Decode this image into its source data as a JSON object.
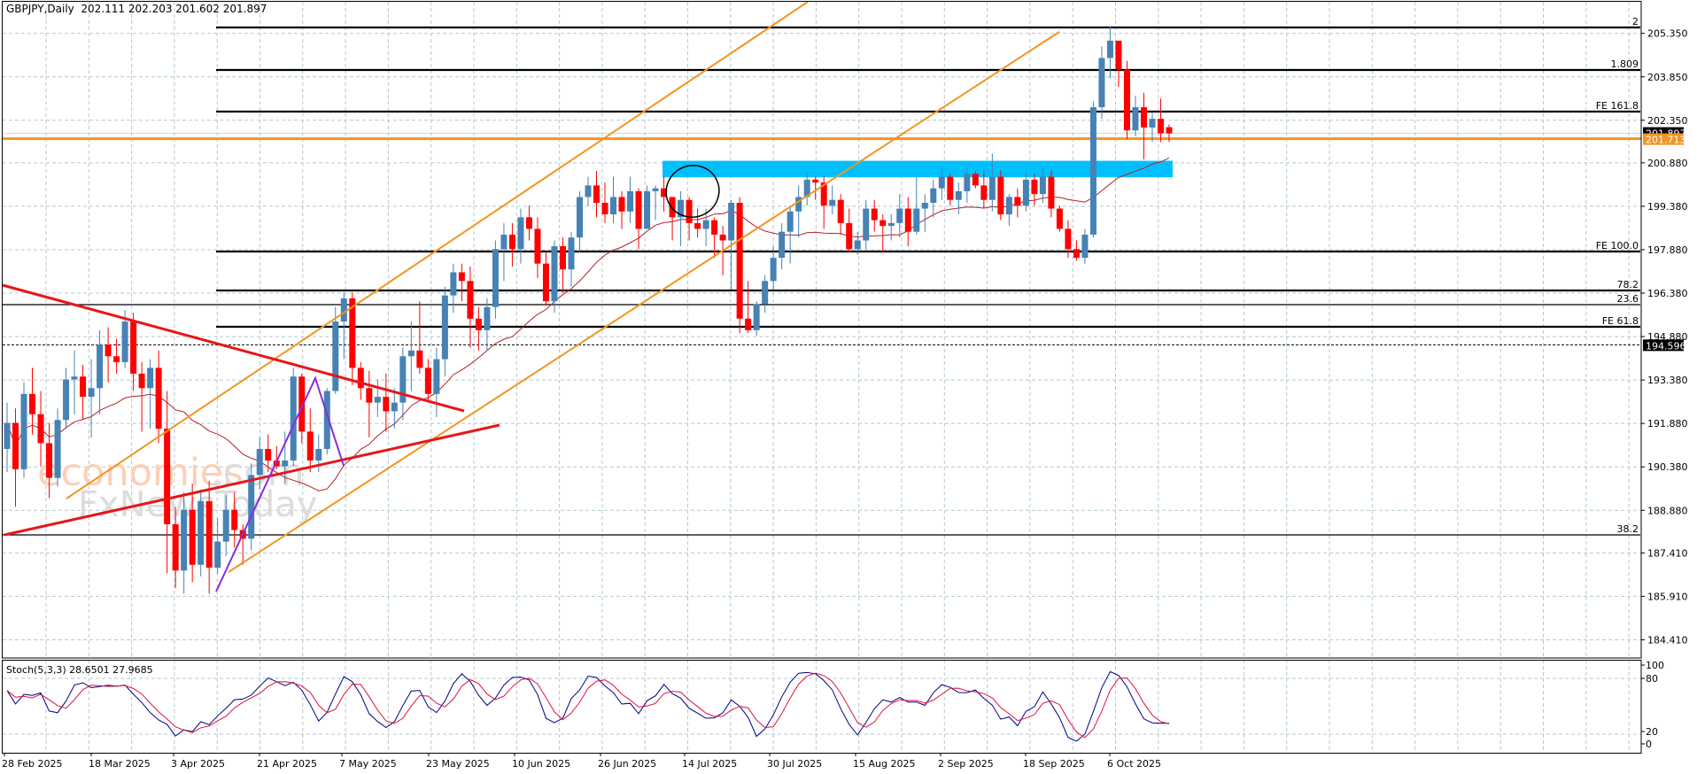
{
  "header": {
    "symbol": "GBPJPY",
    "timeframe": "Daily",
    "open": "202.111",
    "high": "202.203",
    "low": "201.602",
    "close": "201.897",
    "text": "GBPJPY,Daily  202.111 202.203 201.602 201.897"
  },
  "stoch_header": {
    "name": "Stoch(5,3,3)",
    "main": "28.6501",
    "signal": "27.9685",
    "text": "Stoch(5,3,3) 28.6501 27.9685"
  },
  "colors": {
    "bull": "#4682b4",
    "bear": "#ff0000",
    "grid": "#b4c8d2",
    "orange_line": "#f39423",
    "channel": "#f39423",
    "trend_red": "#e8161a",
    "ma": "#b22222",
    "zone": "#00bfff",
    "pattern": "#8a2be2",
    "stoch_main": "#000080",
    "stoch_signal": "#dc143c"
  },
  "price_axis": {
    "ticks": [
      "205.350",
      "203.850",
      "202.350",
      "200.880",
      "199.380",
      "197.880",
      "196.380",
      "194.880",
      "193.380",
      "191.880",
      "190.380",
      "188.880",
      "187.410",
      "185.910",
      "184.410"
    ],
    "current_label": "201.897",
    "orange_label": "201.713",
    "dotted_label": "194.596"
  },
  "fib_levels": [
    {
      "label": "2",
      "price": 205.55
    },
    {
      "label": "1.809",
      "price": 204.08
    },
    {
      "label": "FE 161.8",
      "price": 202.66
    },
    {
      "label": "FE 100.0",
      "price": 197.82
    },
    {
      "label": "78.2",
      "price": 196.47
    },
    {
      "label": "23.6",
      "price": 195.98
    },
    {
      "label": "FE 61.8",
      "price": 195.23
    },
    {
      "label": "38.2",
      "price": 188.02
    }
  ],
  "stoch_axis": {
    "ticks": [
      "100",
      "80",
      "20",
      "0"
    ]
  },
  "date_axis": {
    "labels": [
      "28 Feb 2025",
      "18 Mar 2025",
      "3 Apr 2025",
      "21 Apr 2025",
      "7 May 2025",
      "23 May 2025",
      "10 Jun 2025",
      "26 Jun 2025",
      "14 Jul 2025",
      "30 Jul 2025",
      "15 Aug 2025",
      "2 Sep 2025",
      "18 Sep 2025",
      "6 Oct 2025"
    ]
  },
  "watermark": {
    "line1a": "economies",
    "line1b": ".com",
    "line2": "FxNewsToday"
  },
  "chart_data": {
    "type": "candlestick",
    "title": "GBPJPY,Daily",
    "symbol": "GBPJPY",
    "timeframe": "Daily",
    "ohlc_last": {
      "open": 202.111,
      "high": 202.203,
      "low": 201.602,
      "close": 201.897
    },
    "ylim": [
      184.0,
      206.2
    ],
    "y_ticks": [
      205.35,
      203.85,
      202.35,
      200.88,
      199.38,
      197.88,
      196.38,
      194.88,
      193.38,
      191.88,
      190.38,
      188.88,
      187.41,
      185.91,
      184.41
    ],
    "x_tick_labels": [
      "28 Feb 2025",
      "18 Mar 2025",
      "3 Apr 2025",
      "21 Apr 2025",
      "7 May 2025",
      "23 May 2025",
      "10 Jun 2025",
      "26 Jun 2025",
      "14 Jul 2025",
      "30 Jul 2025",
      "15 Aug 2025",
      "2 Sep 2025",
      "18 Sep 2025",
      "6 Oct 2025"
    ],
    "horizontal_levels": [
      {
        "name": "orange support",
        "value": 201.713
      },
      {
        "name": "dotted level",
        "value": 194.596
      },
      {
        "name": "Fib 2",
        "value": 205.55
      },
      {
        "name": "Fib 1.809",
        "value": 204.08
      },
      {
        "name": "FE 161.8",
        "value": 202.66
      },
      {
        "name": "FE 100.0",
        "value": 197.82
      },
      {
        "name": "Fib 78.2",
        "value": 196.47
      },
      {
        "name": "Fib 23.6",
        "value": 195.98
      },
      {
        "name": "FE 61.8",
        "value": 195.23
      },
      {
        "name": "Fib 38.2",
        "value": 188.02
      }
    ],
    "resistance_zone": {
      "from": 200.38,
      "to": 200.95
    },
    "candles": [
      [
        191.0,
        192.6,
        190.2,
        191.9
      ],
      [
        191.9,
        192.4,
        189.0,
        190.3
      ],
      [
        190.3,
        193.3,
        190.0,
        192.9
      ],
      [
        192.9,
        193.8,
        191.5,
        192.2
      ],
      [
        192.2,
        193.0,
        190.4,
        191.2
      ],
      [
        191.2,
        191.9,
        189.3,
        190.0
      ],
      [
        190.0,
        192.4,
        189.7,
        192.0
      ],
      [
        192.0,
        193.8,
        191.7,
        193.4
      ],
      [
        193.4,
        194.4,
        192.2,
        193.5
      ],
      [
        193.5,
        193.9,
        192.0,
        192.8
      ],
      [
        192.8,
        194.1,
        191.4,
        193.1
      ],
      [
        193.1,
        195.1,
        192.2,
        194.6
      ],
      [
        194.6,
        195.2,
        193.3,
        194.2
      ],
      [
        194.2,
        194.8,
        193.6,
        194.0
      ],
      [
        194.0,
        195.8,
        193.8,
        195.4
      ],
      [
        195.4,
        195.7,
        193.0,
        193.6
      ],
      [
        193.6,
        194.0,
        191.6,
        193.1
      ],
      [
        193.1,
        194.1,
        191.7,
        193.8
      ],
      [
        193.8,
        194.4,
        191.2,
        191.7
      ],
      [
        191.7,
        193.0,
        186.7,
        188.4
      ],
      [
        188.4,
        189.0,
        186.2,
        186.8
      ],
      [
        186.8,
        189.5,
        186.0,
        188.9
      ],
      [
        188.9,
        189.8,
        186.4,
        187.0
      ],
      [
        187.0,
        189.6,
        186.6,
        189.2
      ],
      [
        189.2,
        189.9,
        186.0,
        186.9
      ],
      [
        186.9,
        188.6,
        186.7,
        187.8
      ],
      [
        187.8,
        189.4,
        187.3,
        188.9
      ],
      [
        188.9,
        189.5,
        187.6,
        188.2
      ],
      [
        188.2,
        188.4,
        187.0,
        187.9
      ],
      [
        187.9,
        190.5,
        187.5,
        190.1
      ],
      [
        190.1,
        191.4,
        189.6,
        191.0
      ],
      [
        191.0,
        191.5,
        190.2,
        190.6
      ],
      [
        190.6,
        191.1,
        190.3,
        190.4
      ],
      [
        190.4,
        191.6,
        189.8,
        190.6
      ],
      [
        190.6,
        193.8,
        190.4,
        193.5
      ],
      [
        193.5,
        193.6,
        191.2,
        191.6
      ],
      [
        191.6,
        192.4,
        190.2,
        190.6
      ],
      [
        190.6,
        191.5,
        190.2,
        191.0
      ],
      [
        191.0,
        193.1,
        190.8,
        193.0
      ],
      [
        193.0,
        195.9,
        192.9,
        195.4
      ],
      [
        195.4,
        196.4,
        194.1,
        196.2
      ],
      [
        196.2,
        196.4,
        193.2,
        193.8
      ],
      [
        193.8,
        194.0,
        192.7,
        193.1
      ],
      [
        193.1,
        193.7,
        191.4,
        192.6
      ],
      [
        192.6,
        193.4,
        192.1,
        192.8
      ],
      [
        192.8,
        193.6,
        191.6,
        192.3
      ],
      [
        192.3,
        193.1,
        191.7,
        192.6
      ],
      [
        192.6,
        194.5,
        192.0,
        194.2
      ],
      [
        194.2,
        195.4,
        193.0,
        194.4
      ],
      [
        194.4,
        196.1,
        193.6,
        193.8
      ],
      [
        193.8,
        194.1,
        192.6,
        192.9
      ],
      [
        192.9,
        194.5,
        192.1,
        194.1
      ],
      [
        194.1,
        196.6,
        193.5,
        196.3
      ],
      [
        196.3,
        197.4,
        195.7,
        197.1
      ],
      [
        197.1,
        197.4,
        196.1,
        196.8
      ],
      [
        196.8,
        197.3,
        194.5,
        195.5
      ],
      [
        195.5,
        195.9,
        194.4,
        195.1
      ],
      [
        195.1,
        196.2,
        194.4,
        195.9
      ],
      [
        195.9,
        198.2,
        195.5,
        197.9
      ],
      [
        197.9,
        198.8,
        196.8,
        198.4
      ],
      [
        198.4,
        198.8,
        197.3,
        197.9
      ],
      [
        197.9,
        199.3,
        197.4,
        199.0
      ],
      [
        199.0,
        199.4,
        198.2,
        198.6
      ],
      [
        198.6,
        199.0,
        196.9,
        197.4
      ],
      [
        197.4,
        197.8,
        196.0,
        196.1
      ],
      [
        196.1,
        198.2,
        195.7,
        198.0
      ],
      [
        198.0,
        198.3,
        196.4,
        197.2
      ],
      [
        197.2,
        198.5,
        196.6,
        198.3
      ],
      [
        198.3,
        199.9,
        197.8,
        199.7
      ],
      [
        199.7,
        200.4,
        199.4,
        200.1
      ],
      [
        200.1,
        200.6,
        199.0,
        199.5
      ],
      [
        199.5,
        200.2,
        198.8,
        199.1
      ],
      [
        199.1,
        200.4,
        198.8,
        199.7
      ],
      [
        199.7,
        199.9,
        198.6,
        199.2
      ],
      [
        199.2,
        200.4,
        198.8,
        199.9
      ],
      [
        199.9,
        200.0,
        197.9,
        198.6
      ],
      [
        198.6,
        200.1,
        198.7,
        199.9
      ],
      [
        199.9,
        200.1,
        198.9,
        200.0
      ],
      [
        200.0,
        200.4,
        199.2,
        199.7
      ],
      [
        199.7,
        199.7,
        198.2,
        199.0
      ],
      [
        199.0,
        199.9,
        198.0,
        199.6
      ],
      [
        199.6,
        199.7,
        198.2,
        198.8
      ],
      [
        198.8,
        199.3,
        198.3,
        198.6
      ],
      [
        198.6,
        199.3,
        198.0,
        198.9
      ],
      [
        198.9,
        199.0,
        197.6,
        198.4
      ],
      [
        198.4,
        198.7,
        197.0,
        198.2
      ],
      [
        198.2,
        199.6,
        196.5,
        199.5
      ],
      [
        199.5,
        199.7,
        195.0,
        195.5
      ],
      [
        195.5,
        196.8,
        195.0,
        195.1
      ],
      [
        195.1,
        196.1,
        194.9,
        196.0
      ],
      [
        196.0,
        197.0,
        195.7,
        196.8
      ],
      [
        196.8,
        198.0,
        196.5,
        197.6
      ],
      [
        197.6,
        198.8,
        197.2,
        198.5
      ],
      [
        198.5,
        199.4,
        197.4,
        199.2
      ],
      [
        199.2,
        200.1,
        198.3,
        199.7
      ],
      [
        199.7,
        200.5,
        199.4,
        200.3
      ],
      [
        200.3,
        200.4,
        199.6,
        200.2
      ],
      [
        200.2,
        200.4,
        198.6,
        199.4
      ],
      [
        199.4,
        200.1,
        199.1,
        199.6
      ],
      [
        199.6,
        199.8,
        198.4,
        198.8
      ],
      [
        198.8,
        199.3,
        197.8,
        197.9
      ],
      [
        197.9,
        198.5,
        197.7,
        198.2
      ],
      [
        198.2,
        199.6,
        197.9,
        199.3
      ],
      [
        199.3,
        199.6,
        198.5,
        198.9
      ],
      [
        198.9,
        199.1,
        197.8,
        198.7
      ],
      [
        198.7,
        199.1,
        198.2,
        198.8
      ],
      [
        198.8,
        199.8,
        198.3,
        199.3
      ],
      [
        199.3,
        199.7,
        198.0,
        198.5
      ],
      [
        198.5,
        200.4,
        198.4,
        199.3
      ],
      [
        199.3,
        199.8,
        198.5,
        199.5
      ],
      [
        199.5,
        200.3,
        199.0,
        200.0
      ],
      [
        200.0,
        200.7,
        199.6,
        200.4
      ],
      [
        200.4,
        200.5,
        199.4,
        199.6
      ],
      [
        199.6,
        200.2,
        199.1,
        199.9
      ],
      [
        199.9,
        200.7,
        199.5,
        200.5
      ],
      [
        200.5,
        200.6,
        200.0,
        200.1
      ],
      [
        200.1,
        200.6,
        199.3,
        199.6
      ],
      [
        199.6,
        201.2,
        199.2,
        200.4
      ],
      [
        200.4,
        200.6,
        198.9,
        199.1
      ],
      [
        199.1,
        199.8,
        198.7,
        199.7
      ],
      [
        199.7,
        200.0,
        199.0,
        199.4
      ],
      [
        199.4,
        200.6,
        199.2,
        200.3
      ],
      [
        200.3,
        200.5,
        199.4,
        199.8
      ],
      [
        199.8,
        200.7,
        199.5,
        200.4
      ],
      [
        200.4,
        200.6,
        199.0,
        199.3
      ],
      [
        199.3,
        199.4,
        198.5,
        198.6
      ],
      [
        198.6,
        198.9,
        197.6,
        197.9
      ],
      [
        197.9,
        198.2,
        197.5,
        197.6
      ],
      [
        197.6,
        198.6,
        197.4,
        198.4
      ],
      [
        198.4,
        203.0,
        198.3,
        202.8
      ],
      [
        202.8,
        204.9,
        202.4,
        204.5
      ],
      [
        204.5,
        205.6,
        203.8,
        205.1
      ],
      [
        205.1,
        204.9,
        203.5,
        204.1
      ],
      [
        204.1,
        204.4,
        201.7,
        202.0
      ],
      [
        202.0,
        203.2,
        201.8,
        202.8
      ],
      [
        202.8,
        203.3,
        201.0,
        202.1
      ],
      [
        202.1,
        202.6,
        201.6,
        202.4
      ],
      [
        202.4,
        203.1,
        201.6,
        201.9
      ],
      [
        202.111,
        202.203,
        201.602,
        201.897
      ]
    ],
    "stochastic": {
      "name": "Stoch(5,3,3)",
      "main_last": 28.6501,
      "signal_last": 27.9685,
      "levels": [
        20,
        80
      ],
      "ylim": [
        0,
        100
      ]
    }
  }
}
